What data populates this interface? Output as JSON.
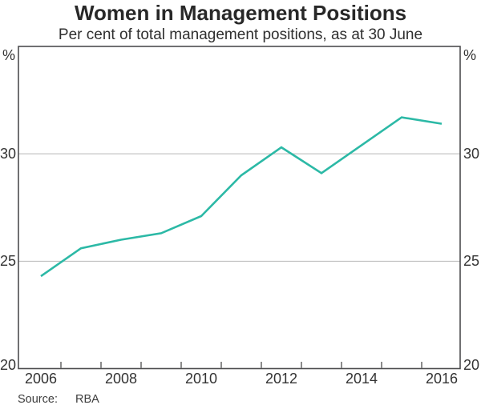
{
  "title": "Women in Management Positions",
  "subtitle": "Per cent of total management positions, as at 30 June",
  "source": {
    "label": "Source:",
    "value": "RBA"
  },
  "colors": {
    "line": "#2cb9a6",
    "frame": "#4d4d4f",
    "grid": "#b8b8b8",
    "text": "#333333"
  },
  "chart_data": {
    "type": "line",
    "title": "Women in Management Positions",
    "subtitle": "Per cent of total management positions, as at 30 June",
    "x": [
      2006,
      2007,
      2008,
      2009,
      2010,
      2011,
      2012,
      2013,
      2014,
      2015,
      2016
    ],
    "series": [
      {
        "name": "Women in management positions (% of total)",
        "values": [
          24.3,
          25.6,
          26.0,
          26.3,
          27.1,
          29.0,
          30.3,
          29.1,
          30.4,
          31.7,
          31.4
        ],
        "color": "#2cb9a6"
      }
    ],
    "xlabel": "",
    "ylabel": "%",
    "unit_label": "%",
    "ylim": [
      20,
      35
    ],
    "yticks": [
      20,
      25,
      30
    ],
    "xtick_labels": [
      2006,
      2008,
      2010,
      2012,
      2014,
      2016
    ],
    "minor_xticks": "january of each year, inward",
    "grid": "horizontal",
    "axis_labels_both_sides": true,
    "legend": "none",
    "source": "RBA"
  }
}
